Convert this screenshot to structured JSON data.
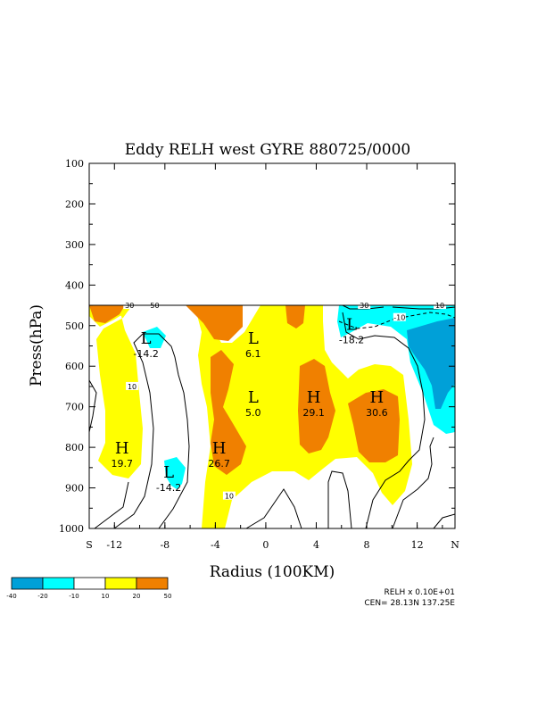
{
  "chart_data": {
    "type": "contour",
    "title": "Eddy RELH west GYRE 880725/0000",
    "xlabel": "Radius (100KM)",
    "ylabel": "Press(hPa)",
    "xlim": [
      -14,
      15
    ],
    "ylim": [
      1000,
      100
    ],
    "x_ticks": [
      {
        "value": -14,
        "label": "S"
      },
      {
        "value": -12,
        "label": "-12"
      },
      {
        "value": -8,
        "label": "-8"
      },
      {
        "value": -4,
        "label": "-4"
      },
      {
        "value": 0,
        "label": "0"
      },
      {
        "value": 4,
        "label": "4"
      },
      {
        "value": 8,
        "label": "8"
      },
      {
        "value": 12,
        "label": "12"
      },
      {
        "value": 15,
        "label": "N"
      }
    ],
    "y_ticks": [
      {
        "value": 100,
        "label": "100"
      },
      {
        "value": 200,
        "label": "200"
      },
      {
        "value": 300,
        "label": "300"
      },
      {
        "value": 400,
        "label": "400"
      },
      {
        "value": 500,
        "label": "500"
      },
      {
        "value": 600,
        "label": "600"
      },
      {
        "value": 700,
        "label": "700"
      },
      {
        "value": 800,
        "label": "800"
      },
      {
        "value": 900,
        "label": "900"
      },
      {
        "value": 1000,
        "label": "1000"
      }
    ],
    "data_top_pressure": 450,
    "extrema": [
      {
        "kind": "L",
        "value": "-14.2",
        "x": -9.5,
        "p": 545
      },
      {
        "kind": "L",
        "value": "6.1",
        "x": -1.0,
        "p": 545
      },
      {
        "kind": "L",
        "value": "-18.2",
        "x": 6.8,
        "p": 510
      },
      {
        "kind": "L",
        "value": "5.0",
        "x": -1.0,
        "p": 690
      },
      {
        "kind": "H",
        "value": "29.1",
        "x": 3.8,
        "p": 690
      },
      {
        "kind": "H",
        "value": "30.6",
        "x": 8.8,
        "p": 690
      },
      {
        "kind": "H",
        "value": "19.7",
        "x": -11.4,
        "p": 815
      },
      {
        "kind": "H",
        "value": "26.7",
        "x": -3.7,
        "p": 815
      },
      {
        "kind": "L",
        "value": "-14.2",
        "x": -7.7,
        "p": 875
      }
    ],
    "contour_labels": [
      {
        "text": "30",
        "x": -10.8,
        "p": 450
      },
      {
        "text": "50",
        "x": -8.8,
        "p": 450
      },
      {
        "text": "30",
        "x": 7.8,
        "p": 450
      },
      {
        "text": "10",
        "x": 13.8,
        "p": 450
      },
      {
        "text": "-10",
        "x": 10.6,
        "p": 480
      },
      {
        "text": "10",
        "x": -10.6,
        "p": 650
      },
      {
        "text": "10",
        "x": -2.9,
        "p": 920
      }
    ],
    "legend": {
      "levels": [
        "-40",
        "-20",
        "-10",
        "10",
        "20",
        "50"
      ],
      "colors": [
        "#00a0d8",
        "#00ffff",
        "#ffffff",
        "#ffff00",
        "#f08000"
      ]
    },
    "footnote": {
      "line1": "RELH x  0.10E+01",
      "line2": "CEN= 28.13N  137.25E"
    }
  }
}
